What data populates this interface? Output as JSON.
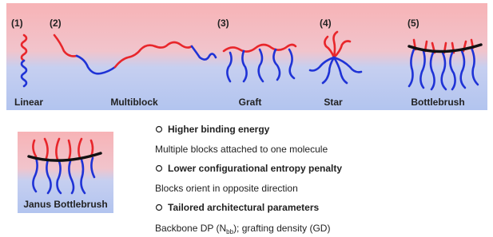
{
  "panel": {
    "items": [
      {
        "number": "(1)",
        "name": "Linear"
      },
      {
        "number": "(2)",
        "name": "Multiblock"
      },
      {
        "number": "(3)",
        "name": "Graft"
      },
      {
        "number": "(4)",
        "name": "Star"
      },
      {
        "number": "(5)",
        "name": "Bottlebrush"
      }
    ]
  },
  "janus": {
    "label": "Janus Bottlebrush"
  },
  "features": [
    {
      "heading": "Higher binding energy",
      "description": "Multiple blocks attached to one molecule"
    },
    {
      "heading": "Lower configurational entropy penalty",
      "description": "Blocks orient in opposite direction"
    },
    {
      "heading": "Tailored architectural parameters",
      "description": "Backbone DP (N",
      "subscript": "bb",
      "description_end": "); grafting density (GD)"
    }
  ]
}
